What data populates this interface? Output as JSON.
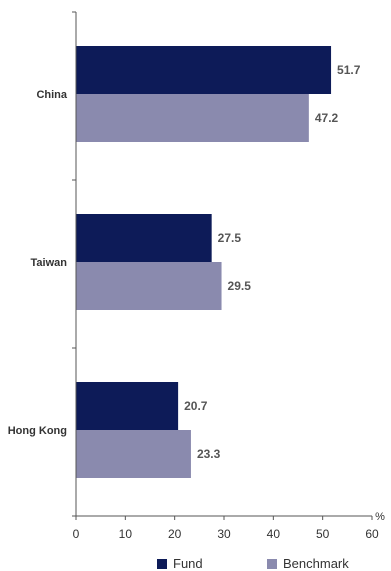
{
  "chart_data": {
    "type": "bar",
    "orientation": "horizontal",
    "categories": [
      "China",
      "Taiwan",
      "Hong Kong"
    ],
    "series": [
      {
        "name": "Fund",
        "values": [
          51.7,
          27.5,
          20.7
        ],
        "color": "#0d1b58"
      },
      {
        "name": "Benchmark",
        "values": [
          47.2,
          29.5,
          23.3
        ],
        "color": "#8a8aae"
      }
    ],
    "x_ticks": [
      "0",
      "10",
      "20",
      "30",
      "40",
      "50",
      "60"
    ],
    "xlim": [
      0,
      60
    ],
    "x_unit": "%",
    "grid": false,
    "legend_position": "bottom"
  }
}
